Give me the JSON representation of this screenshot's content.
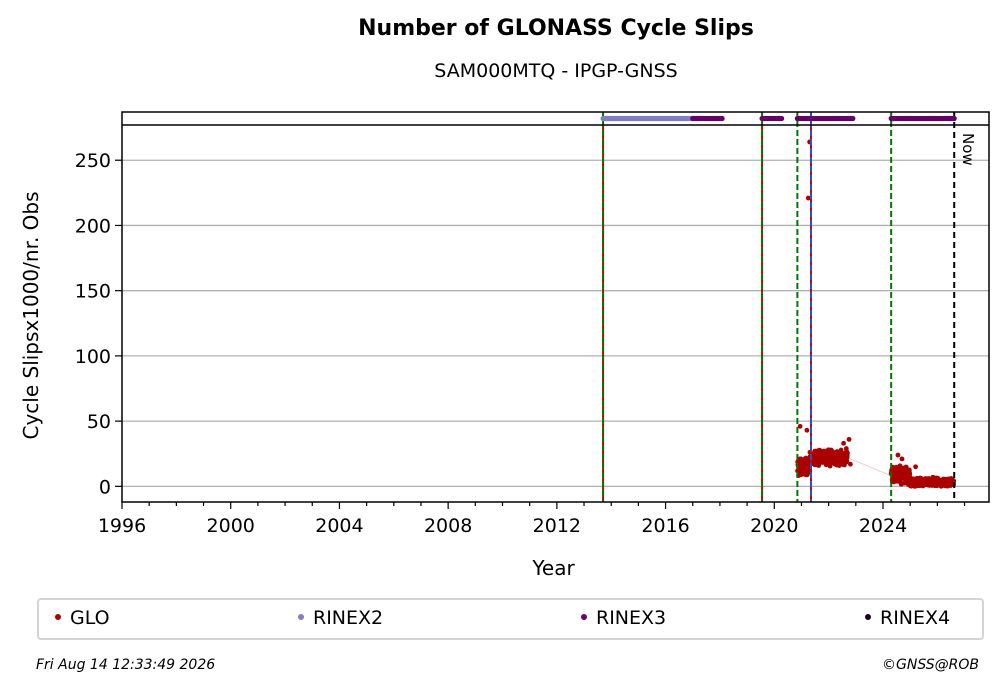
{
  "chart_data": {
    "type": "scatter",
    "title": "Number of GLONASS Cycle Slips",
    "subtitle": "SAM000MTQ - IPGP-GNSS",
    "xlabel": "Year",
    "ylabel": "Cycle Slipsx1000/nr. Obs",
    "xlim": [
      1996,
      2027.9
    ],
    "ylim": [
      -12,
      277
    ],
    "x_ticks": [
      1996,
      2000,
      2004,
      2008,
      2012,
      2016,
      2020,
      2024
    ],
    "y_ticks": [
      0,
      50,
      100,
      150,
      200,
      250
    ],
    "grid": "horizontal",
    "now_label": "Now",
    "now_year": 2026.62,
    "event_lines": [
      {
        "year": 2013.7,
        "kind": "antenna/receiver",
        "color": "#007700",
        "secondary": "#cc0000"
      },
      {
        "year": 2019.55,
        "kind": "antenna/receiver",
        "color": "#007700",
        "secondary": "#cc0000"
      },
      {
        "year": 2020.85,
        "kind": "receiver",
        "color": "#007700"
      },
      {
        "year": 2021.35,
        "kind": "firmware",
        "color": "#2255cc",
        "secondary": "#cc0000"
      },
      {
        "year": 2024.3,
        "kind": "receiver",
        "color": "#007700"
      }
    ],
    "availability": [
      {
        "name": "RINEX2",
        "color": "#8080c0",
        "ranges": [
          [
            2013.7,
            2017.0
          ]
        ]
      },
      {
        "name": "RINEX3",
        "color": "#660066",
        "ranges": [
          [
            2017.0,
            2018.1
          ],
          [
            2019.55,
            2020.3
          ],
          [
            2020.85,
            2022.9
          ],
          [
            2024.3,
            2026.62
          ]
        ]
      }
    ],
    "series": [
      {
        "name": "GLO",
        "color": "#aa0000",
        "clusters": [
          {
            "x_range": [
              2020.85,
              2021.3
            ],
            "y_mean": 15,
            "y_spread": 6
          },
          {
            "x_range": [
              2021.3,
              2022.7
            ],
            "y_mean": 22,
            "y_spread": 5
          },
          {
            "x_range": [
              2024.3,
              2025.0
            ],
            "y_mean": 8,
            "y_spread": 6
          },
          {
            "x_range": [
              2025.0,
              2026.6
            ],
            "y_mean": 3,
            "y_spread": 3
          }
        ],
        "points": [
          {
            "x": 2021.3,
            "y": 264
          },
          {
            "x": 2021.25,
            "y": 221
          },
          {
            "x": 2020.95,
            "y": 46
          },
          {
            "x": 2021.2,
            "y": 43
          },
          {
            "x": 2022.75,
            "y": 36
          },
          {
            "x": 2022.55,
            "y": 33
          },
          {
            "x": 2022.65,
            "y": 29
          },
          {
            "x": 2024.55,
            "y": 24
          },
          {
            "x": 2024.7,
            "y": 21
          },
          {
            "x": 2025.2,
            "y": 15
          },
          {
            "x": 2022.8,
            "y": 17
          }
        ]
      }
    ]
  },
  "legend": [
    {
      "label": "GLO",
      "color": "#aa0000"
    },
    {
      "label": "RINEX2",
      "color": "#8080c0"
    },
    {
      "label": "RINEX3",
      "color": "#660066"
    },
    {
      "label": "RINEX4",
      "color": "#220022"
    }
  ],
  "footer": {
    "timestamp": "Fri Aug 14 12:33:49 2026",
    "credit": "©GNSS@ROB"
  }
}
